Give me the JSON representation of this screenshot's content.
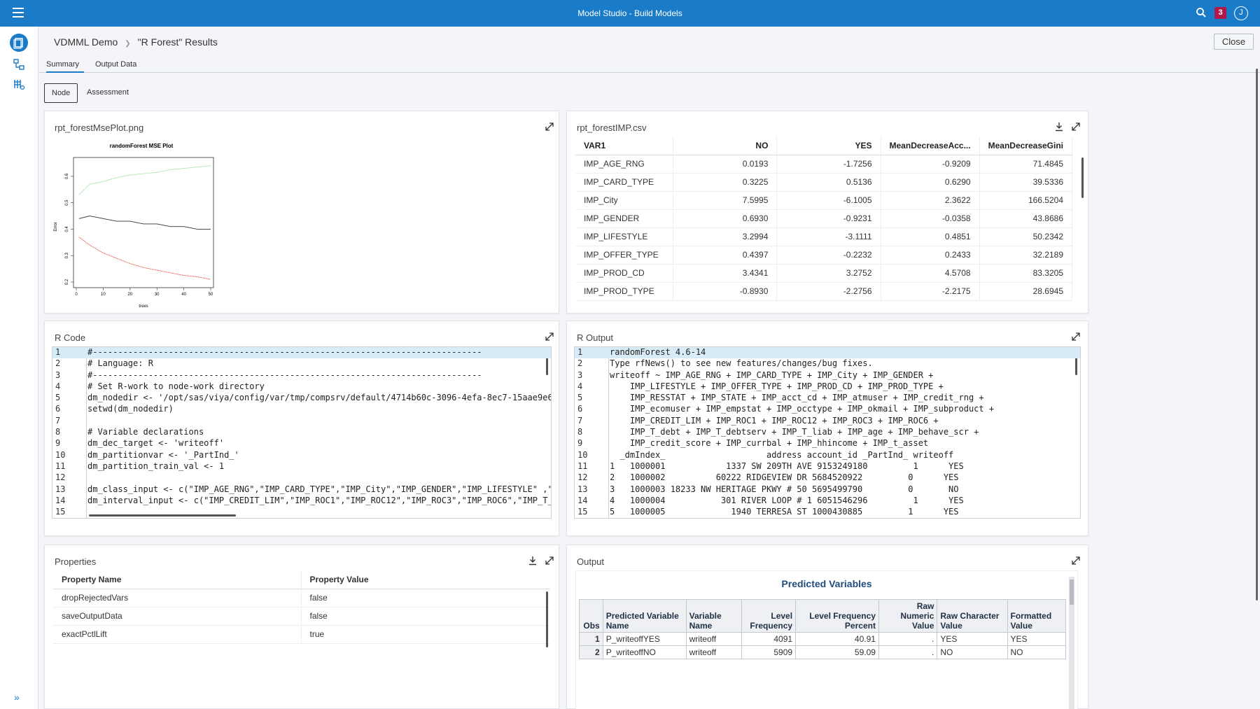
{
  "app": {
    "title": "Model Studio - Build Models",
    "notifications": "3",
    "user_initial": "J"
  },
  "breadcrumb": {
    "project": "VDMML Demo",
    "page": "\"R Forest\" Results"
  },
  "close_label": "Close",
  "tabs": [
    "Summary",
    "Output Data"
  ],
  "subtabs": [
    "Node",
    "Assessment"
  ],
  "panels": {
    "plot": {
      "title": "rpt_forestMsePlot.png",
      "chart_title": "randomForest MSE Plot",
      "ylabel": "Error",
      "xlabel": "trees",
      "yticks": [
        "0.2",
        "0.3",
        "0.4",
        "0.5",
        "0.6"
      ],
      "xticks": [
        "0",
        "10",
        "20",
        "30",
        "40",
        "50"
      ]
    },
    "imp": {
      "title": "rpt_forestIMP.csv"
    },
    "rcode": {
      "title": "R Code"
    },
    "routput": {
      "title": "R Output"
    },
    "properties": {
      "title": "Properties"
    },
    "output": {
      "title": "Output"
    }
  },
  "chart_data": {
    "type": "line",
    "title": "randomForest MSE Plot",
    "xlabel": "trees",
    "ylabel": "Error",
    "xlim": [
      0,
      50
    ],
    "ylim": [
      0.2,
      0.65
    ],
    "series": [
      {
        "color": "#90d890",
        "x": [
          1,
          5,
          10,
          15,
          20,
          25,
          30,
          35,
          40,
          45,
          50
        ],
        "values": [
          0.53,
          0.57,
          0.58,
          0.595,
          0.605,
          0.61,
          0.615,
          0.625,
          0.63,
          0.635,
          0.64
        ]
      },
      {
        "color": "#333333",
        "x": [
          1,
          5,
          10,
          15,
          20,
          25,
          30,
          35,
          40,
          45,
          50
        ],
        "values": [
          0.44,
          0.45,
          0.44,
          0.43,
          0.43,
          0.42,
          0.42,
          0.41,
          0.41,
          0.4,
          0.4
        ]
      },
      {
        "color": "#e8483a",
        "x": [
          1,
          5,
          10,
          15,
          20,
          25,
          30,
          35,
          40,
          45,
          50
        ],
        "values": [
          0.37,
          0.34,
          0.31,
          0.29,
          0.27,
          0.255,
          0.245,
          0.235,
          0.225,
          0.22,
          0.21
        ]
      }
    ]
  },
  "imp_table": {
    "headers": [
      "VAR1",
      "NO",
      "YES",
      "MeanDecreaseAcc...",
      "MeanDecreaseGini"
    ],
    "rows": [
      [
        "IMP_AGE_RNG",
        "0.0193",
        "-1.7256",
        "-0.9209",
        "71.4845"
      ],
      [
        "IMP_CARD_TYPE",
        "0.3225",
        "0.5136",
        "0.6290",
        "39.5336"
      ],
      [
        "IMP_City",
        "7.5995",
        "-6.1005",
        "2.3622",
        "166.5204"
      ],
      [
        "IMP_GENDER",
        "0.6930",
        "-0.9231",
        "-0.0358",
        "43.8686"
      ],
      [
        "IMP_LIFESTYLE",
        "3.2994",
        "-3.1111",
        "0.4851",
        "50.2342"
      ],
      [
        "IMP_OFFER_TYPE",
        "0.4397",
        "-0.2232",
        "0.2433",
        "32.2189"
      ],
      [
        "IMP_PROD_CD",
        "3.4341",
        "3.2752",
        "4.5708",
        "83.3205"
      ],
      [
        "IMP_PROD_TYPE",
        "-0.8930",
        "-2.2756",
        "-2.2175",
        "28.6945"
      ]
    ]
  },
  "rcode_lines": [
    "#-----------------------------------------------------------------------------",
    "# Language: R",
    "#-----------------------------------------------------------------------------",
    "# Set R-work to node-work directory",
    "dm_nodedir <- '/opt/sas/viya/config/var/tmp/compsrv/default/4714b60c-3096-4efa-8ec7-15aae9e6",
    "setwd(dm_nodedir)",
    "",
    "# Variable declarations",
    "dm_dec_target <- 'writeoff'",
    "dm_partitionvar <- '_PartInd_'",
    "dm_partition_train_val <- 1",
    "",
    "dm_class_input <- c(\"IMP_AGE_RNG\",\"IMP_CARD_TYPE\",\"IMP_City\",\"IMP_GENDER\",\"IMP_LIFESTYLE\" ,\"",
    "dm_interval_input <- c(\"IMP_CREDIT_LIM\",\"IMP_ROC1\",\"IMP_ROC12\",\"IMP_ROC3\",\"IMP_ROC6\",\"IMP_T_",
    ""
  ],
  "routput_lines": [
    "randomForest 4.6-14",
    "Type rfNews() to see new features/changes/bug fixes.",
    "writeoff ~ IMP_AGE_RNG + IMP_CARD_TYPE + IMP_City + IMP_GENDER +",
    "    IMP_LIFESTYLE + IMP_OFFER_TYPE + IMP_PROD_CD + IMP_PROD_TYPE +",
    "    IMP_RESSTAT + IMP_STATE + IMP_acct_cd + IMP_atmuser + IMP_credit_rng +",
    "    IMP_ecomuser + IMP_empstat + IMP_occtype + IMP_okmail + IMP_subproduct +",
    "    IMP_CREDIT_LIM + IMP_ROC1 + IMP_ROC12 + IMP_ROC3 + IMP_ROC6 +",
    "    IMP_T_debt + IMP_T_debtserv + IMP_T_liab + IMP_age + IMP_behave_scr +",
    "    IMP_credit_score + IMP_currbal + IMP_hhincome + IMP_t_asset",
    "  _dmIndex_                    address account_id _PartInd_ writeoff",
    "1   1000001            1337 SW 209TH AVE 9153249180         1      YES",
    "2   1000002          60222 RIDGEVIEW DR 5684520922         0      YES",
    "3   1000003 18233 NW HERITAGE PKWY # 50 5695499790         0       NO",
    "4   1000004           301 RIVER LOOP # 1 6051546296         1      YES",
    "5   1000005             1940 TERRESA ST 1000430885         1      YES"
  ],
  "properties": {
    "headers": [
      "Property Name",
      "Property Value"
    ],
    "rows": [
      [
        "dropRejectedVars",
        "false"
      ],
      [
        "saveOutputData",
        "false"
      ],
      [
        "exactPctlLift",
        "true"
      ]
    ]
  },
  "predicted": {
    "title": "Predicted Variables",
    "headers": [
      "Obs",
      "Predicted Variable Name",
      "Variable Name",
      "Level Frequency",
      "Level Frequency Percent",
      "Raw Numeric Value",
      "Raw Character Value",
      "Formatted Value"
    ],
    "rows": [
      [
        "1",
        "P_writeoffYES",
        "writeoff",
        "4091",
        "40.91",
        ".",
        "YES",
        "YES"
      ],
      [
        "2",
        "P_writeoffNO",
        "writeoff",
        "5909",
        "59.09",
        ".",
        "NO",
        "NO"
      ]
    ]
  }
}
